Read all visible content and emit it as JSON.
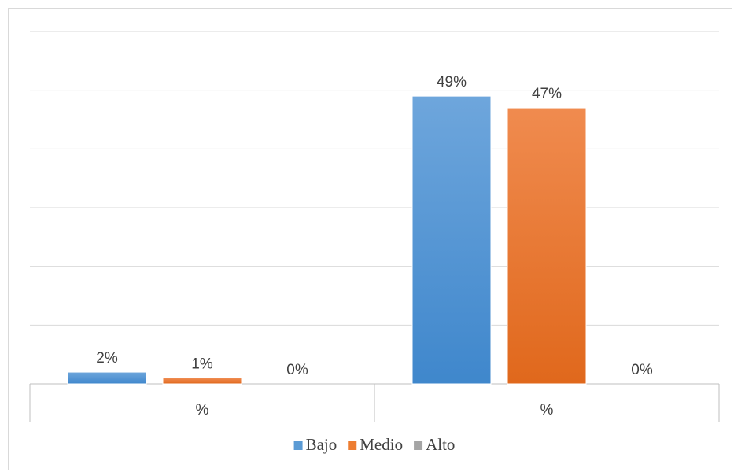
{
  "chart_data": {
    "type": "bar",
    "categories": [
      "%",
      "%"
    ],
    "series": [
      {
        "name": "Bajo",
        "values": [
          2,
          49
        ],
        "labels": [
          "2%",
          "49%"
        ],
        "color": "#5b9bd5"
      },
      {
        "name": "Medio",
        "values": [
          1,
          47
        ],
        "labels": [
          "1%",
          "47%"
        ],
        "color": "#ed7d31"
      },
      {
        "name": "Alto",
        "values": [
          0,
          0
        ],
        "labels": [
          "0%",
          "0%"
        ],
        "color": "#a5a5a5"
      }
    ],
    "title": "",
    "xlabel": "",
    "ylabel": "",
    "ylim": [
      0,
      60
    ],
    "grid": true,
    "legend": "bottom"
  }
}
